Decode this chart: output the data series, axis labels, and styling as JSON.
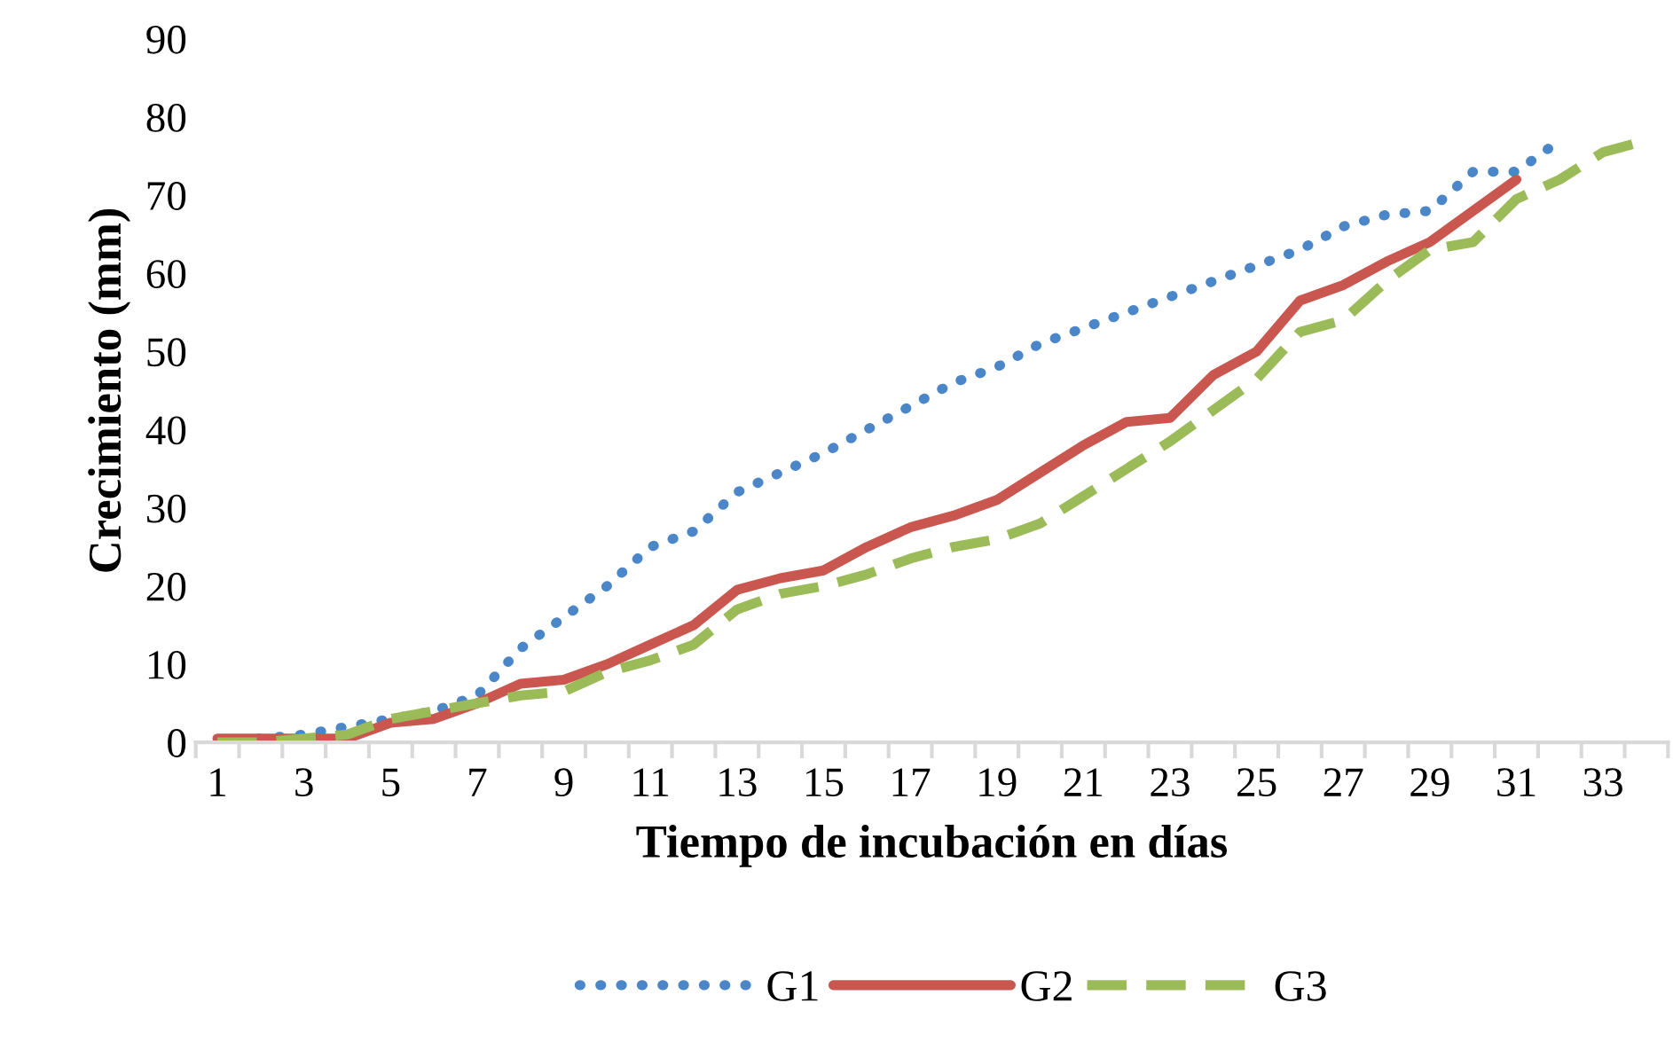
{
  "chart_data": {
    "type": "line",
    "xlabel": "Tiempo de incubación en días",
    "ylabel": "Crecimiento (mm)",
    "categories": [
      "1",
      null,
      "3",
      null,
      "5",
      null,
      "7",
      null,
      "9",
      null,
      "11",
      null,
      "13",
      null,
      "15",
      null,
      "17",
      null,
      "19",
      null,
      "21",
      null,
      "23",
      null,
      "25",
      null,
      "27",
      null,
      "29",
      null,
      "31",
      null,
      "33",
      null
    ],
    "ylim": [
      0,
      90
    ],
    "yticks": [
      0,
      10,
      20,
      30,
      40,
      50,
      60,
      70,
      80,
      90
    ],
    "grid": false,
    "legend": "bottom",
    "series": [
      {
        "name": "G1",
        "color": "#4a86c8",
        "line_style": "dotted",
        "values": [
          0,
          0.5,
          1,
          2,
          3,
          4,
          6,
          12,
          16,
          20,
          25,
          27,
          32,
          34.5,
          37,
          40,
          43,
          46,
          48,
          51,
          53,
          55,
          57,
          59,
          61,
          63,
          66,
          67.5,
          68,
          73,
          73,
          77,
          null,
          null
        ]
      },
      {
        "name": "G2",
        "color": "#c9574f",
        "line_style": "solid",
        "values": [
          0.5,
          0.5,
          0.5,
          0.5,
          2.5,
          3,
          5,
          7.5,
          8,
          10,
          12.5,
          15,
          19.5,
          21,
          22,
          25,
          27.5,
          29,
          31,
          34.5,
          38,
          41,
          41.5,
          47,
          50,
          56.5,
          58.5,
          61.5,
          64,
          68,
          72,
          null,
          null,
          null
        ]
      },
      {
        "name": "G3",
        "color": "#9bbb59",
        "line_style": "dashed",
        "values": [
          0,
          0,
          0.5,
          1,
          3,
          4,
          5,
          6,
          6.5,
          9,
          10.5,
          12.5,
          17,
          19,
          20,
          21.5,
          23.5,
          25,
          26,
          28,
          31.5,
          35,
          38.5,
          42.5,
          46.5,
          52.5,
          54,
          59,
          63,
          64,
          69.5,
          72,
          75.5,
          77
        ]
      }
    ]
  }
}
